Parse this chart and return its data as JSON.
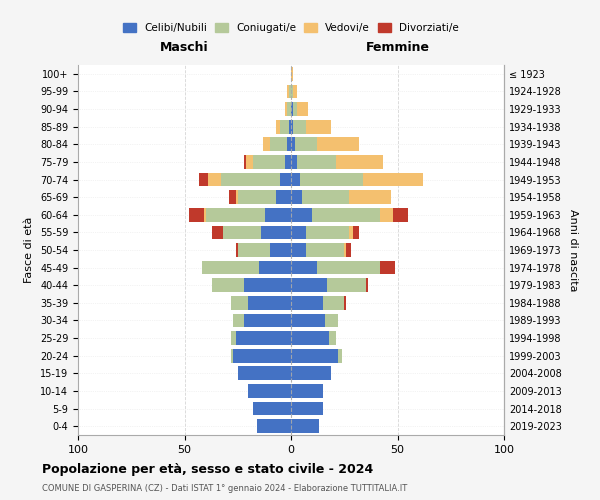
{
  "age_groups": [
    "0-4",
    "5-9",
    "10-14",
    "15-19",
    "20-24",
    "25-29",
    "30-34",
    "35-39",
    "40-44",
    "45-49",
    "50-54",
    "55-59",
    "60-64",
    "65-69",
    "70-74",
    "75-79",
    "80-84",
    "85-89",
    "90-94",
    "95-99",
    "100+"
  ],
  "birth_years": [
    "2019-2023",
    "2014-2018",
    "2009-2013",
    "2004-2008",
    "1999-2003",
    "1994-1998",
    "1989-1993",
    "1984-1988",
    "1979-1983",
    "1974-1978",
    "1969-1973",
    "1964-1968",
    "1959-1963",
    "1954-1958",
    "1949-1953",
    "1944-1948",
    "1939-1943",
    "1934-1938",
    "1929-1933",
    "1924-1928",
    "≤ 1923"
  ],
  "colors": {
    "celibi": "#4472c4",
    "coniugati": "#b5c99a",
    "vedovi": "#f4c06f",
    "divorziati": "#c0392b"
  },
  "males": {
    "celibi": [
      16,
      18,
      20,
      25,
      27,
      26,
      22,
      20,
      22,
      15,
      10,
      14,
      12,
      7,
      5,
      3,
      2,
      1,
      0,
      0,
      0
    ],
    "coniugati": [
      0,
      0,
      0,
      0,
      1,
      2,
      5,
      8,
      15,
      27,
      15,
      18,
      28,
      18,
      28,
      15,
      8,
      4,
      2,
      1,
      0
    ],
    "vedovi": [
      0,
      0,
      0,
      0,
      0,
      0,
      0,
      0,
      0,
      0,
      0,
      0,
      1,
      1,
      6,
      3,
      3,
      2,
      1,
      1,
      0
    ],
    "divorziati": [
      0,
      0,
      0,
      0,
      0,
      0,
      0,
      0,
      0,
      0,
      1,
      5,
      7,
      3,
      4,
      1,
      0,
      0,
      0,
      0,
      0
    ]
  },
  "females": {
    "celibi": [
      13,
      15,
      15,
      19,
      22,
      18,
      16,
      15,
      17,
      12,
      7,
      7,
      10,
      5,
      4,
      3,
      2,
      1,
      1,
      0,
      0
    ],
    "coniugati": [
      0,
      0,
      0,
      0,
      2,
      3,
      6,
      10,
      18,
      30,
      18,
      20,
      32,
      22,
      30,
      18,
      10,
      6,
      2,
      1,
      0
    ],
    "vedovi": [
      0,
      0,
      0,
      0,
      0,
      0,
      0,
      0,
      0,
      0,
      1,
      2,
      6,
      20,
      28,
      22,
      20,
      12,
      5,
      2,
      1
    ],
    "divorziati": [
      0,
      0,
      0,
      0,
      0,
      0,
      0,
      1,
      1,
      7,
      2,
      3,
      7,
      0,
      0,
      0,
      0,
      0,
      0,
      0,
      0
    ]
  },
  "xlim": 100,
  "title": "Popolazione per età, sesso e stato civile - 2024",
  "subtitle": "COMUNE DI GASPERINA (CZ) - Dati ISTAT 1° gennaio 2024 - Elaborazione TUTTITALIA.IT",
  "xlabel_left": "Maschi",
  "xlabel_right": "Femmine",
  "ylabel_left": "Fasce di età",
  "ylabel_right": "Anni di nascita",
  "legend_labels": [
    "Celibi/Nubili",
    "Coniugati/e",
    "Vedovi/e",
    "Divorziati/e"
  ],
  "bg_color": "#f5f5f5",
  "plot_bg_color": "#ffffff"
}
